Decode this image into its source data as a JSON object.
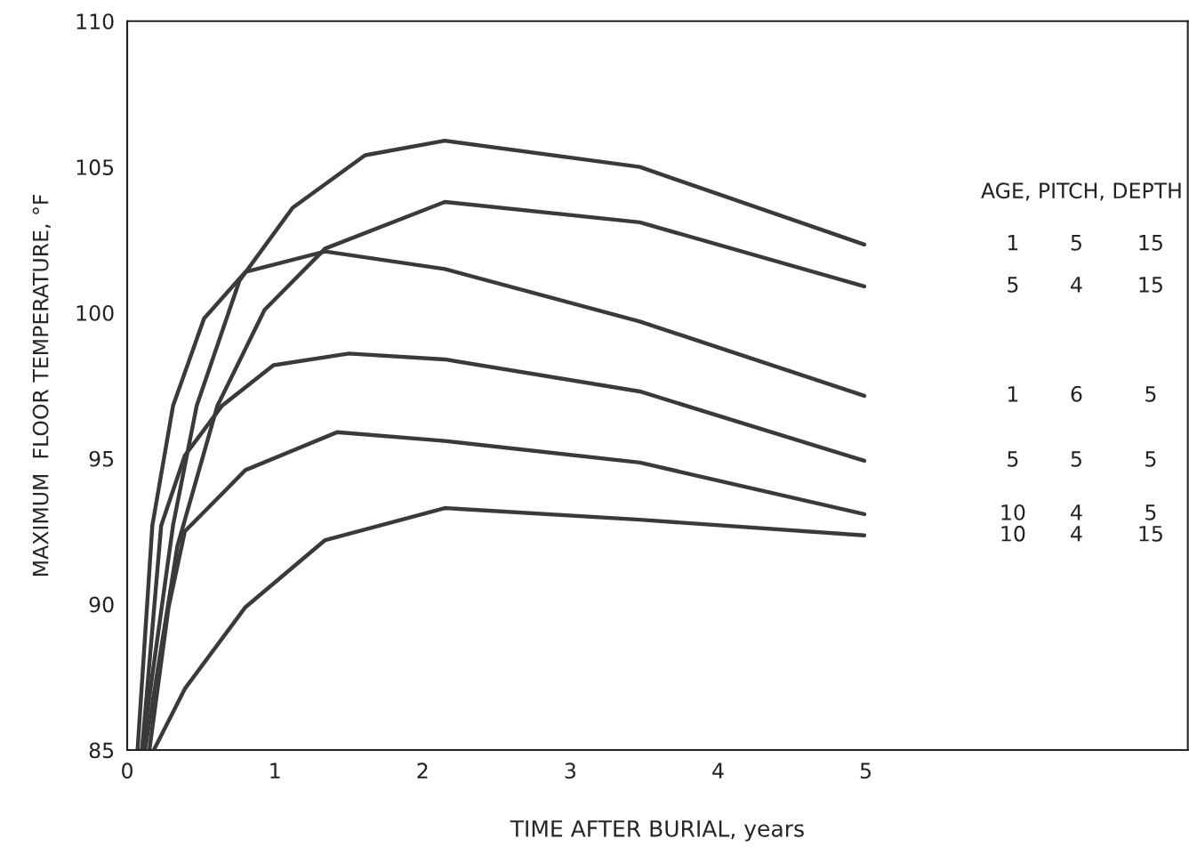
{
  "chart_data": {
    "type": "line",
    "xlabel": "TIME AFTER BURIAL, years",
    "ylabel": "MAXIMUM  FLOOR TEMPERATURE, °F",
    "legend_title": "AGE, PITCH, DEPTH",
    "xlim": [
      0,
      7.18
    ],
    "xticks": [
      0,
      1,
      2,
      3,
      4,
      5
    ],
    "ylim": [
      85,
      110
    ],
    "yticks": [
      85,
      90,
      95,
      100,
      105,
      110
    ],
    "grid": false,
    "legend": false,
    "marker": "none",
    "line_style": "solid",
    "series": [
      {
        "name": "1 5 15",
        "color": "#3a3a3a",
        "x": [
          0.1,
          0.31,
          0.47,
          0.76,
          1.12,
          1.61,
          2.15,
          3.47,
          4.99
        ],
        "values": [
          85,
          92.7,
          96.8,
          101.1,
          103.6,
          105.4,
          105.9,
          105.0,
          102.34
        ]
      },
      {
        "name": "5 4 15",
        "color": "#3a3a3a",
        "x": [
          0.12,
          0.34,
          0.61,
          0.93,
          1.34,
          2.15,
          3.47,
          4.99
        ],
        "values": [
          85,
          92.0,
          96.8,
          100.1,
          102.2,
          103.8,
          103.1,
          100.9
        ]
      },
      {
        "name": "1 6 5",
        "color": "#3a3a3a",
        "x": [
          0.07,
          0.17,
          0.31,
          0.52,
          0.8,
          1.34,
          2.15,
          3.47,
          4.99
        ],
        "values": [
          85,
          92.7,
          96.8,
          99.8,
          101.4,
          102.1,
          101.5,
          99.7,
          97.15
        ]
      },
      {
        "name": "5 5 5",
        "color": "#3a3a3a",
        "x": [
          0.1,
          0.23,
          0.39,
          0.64,
          0.99,
          1.5,
          2.15,
          3.47,
          4.99
        ],
        "values": [
          85,
          92.7,
          95.1,
          96.8,
          98.2,
          98.6,
          98.4,
          97.3,
          94.92
        ]
      },
      {
        "name": "10 4 5",
        "color": "#3a3a3a",
        "x": [
          0.15,
          0.28,
          0.39,
          0.8,
          1.42,
          2.15,
          3.47,
          4.99
        ],
        "values": [
          85,
          89.9,
          92.5,
          94.6,
          95.9,
          95.6,
          94.86,
          93.09
        ]
      },
      {
        "name": "10 4 15",
        "color": "#3a3a3a",
        "x": [
          0.18,
          0.39,
          0.8,
          1.34,
          2.15,
          3.47,
          4.99
        ],
        "values": [
          85,
          87.1,
          89.9,
          92.2,
          93.3,
          92.9,
          92.36
        ]
      }
    ]
  }
}
